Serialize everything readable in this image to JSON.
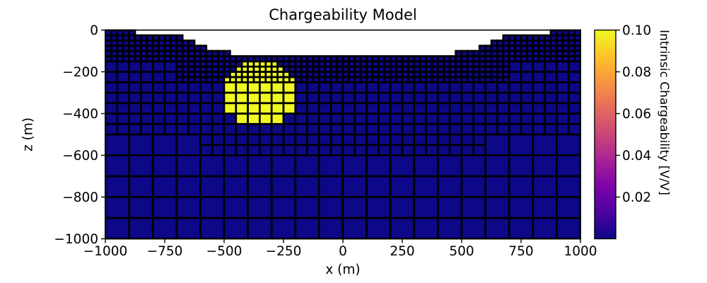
{
  "chart_data": {
    "type": "heatmap",
    "subtype": "quadtree-tree-mesh-cross-section",
    "title": "Chargeability Model",
    "xlabel": "x (m)",
    "ylabel": "z (m)",
    "xlim": [
      -1000,
      1000
    ],
    "zlim": [
      -1000,
      0
    ],
    "xticks": {
      "values": [
        -1000,
        -750,
        -500,
        -250,
        0,
        250,
        500,
        750,
        1000
      ],
      "labels": [
        "−1000",
        "−750",
        "−500",
        "−250",
        "0",
        "250",
        "500",
        "750",
        "1000"
      ]
    },
    "zticks": {
      "values": [
        0,
        -200,
        -400,
        -600,
        -800,
        -1000
      ],
      "labels": [
        "0",
        "−200",
        "−400",
        "−600",
        "−800",
        "−1000"
      ]
    },
    "colorbar": {
      "label": "Intrinsic Chargeability [V/V]",
      "colormap": "plasma",
      "vmin": 0.0,
      "vmax": 0.1,
      "ticks": {
        "values": [
          0.02,
          0.04,
          0.06,
          0.08,
          0.1
        ],
        "labels": [
          "0.02",
          "0.04",
          "0.06",
          "0.08",
          "0.10"
        ]
      },
      "gradient_stops": [
        {
          "offset": 0.0,
          "color": "#0d0887"
        },
        {
          "offset": 0.125,
          "color": "#4b03a1"
        },
        {
          "offset": 0.25,
          "color": "#7d03a8"
        },
        {
          "offset": 0.375,
          "color": "#a82296"
        },
        {
          "offset": 0.5,
          "color": "#cb4679"
        },
        {
          "offset": 0.625,
          "color": "#e56b5d"
        },
        {
          "offset": 0.75,
          "color": "#f89441"
        },
        {
          "offset": 0.875,
          "color": "#fdc328"
        },
        {
          "offset": 1.0,
          "color": "#f0f921"
        }
      ]
    },
    "values": {
      "background_chargeability": 0.0,
      "anomaly_chargeability": 0.1
    },
    "anomaly": {
      "shape": "circle",
      "center_x": -350,
      "center_z": -300,
      "radius": 155
    },
    "mesh": {
      "cell_sizes_m": [
        25,
        50,
        100
      ],
      "topography_steps": [
        [
          -1000,
          -875,
          0
        ],
        [
          -875,
          -675,
          -25
        ],
        [
          -675,
          -625,
          -50
        ],
        [
          -625,
          -575,
          -75
        ],
        [
          -575,
          -475,
          -100
        ],
        [
          -475,
          475,
          -125
        ],
        [
          475,
          575,
          -100
        ],
        [
          575,
          625,
          -75
        ],
        [
          625,
          675,
          -50
        ],
        [
          675,
          875,
          -25
        ],
        [
          875,
          1000,
          0
        ]
      ],
      "fine_floor_shallow_z": -150,
      "fine_floor_deep_z": -255,
      "fine_deep_topo_threshold_z": -50,
      "core_half_width_m": 600,
      "medium_floor_core_z": -600,
      "medium_floor_flank_z": -500
    },
    "colors": {
      "background_cell": "#0d0887",
      "anomaly_cell": "#f0f921",
      "cell_edge": "#000000",
      "spine": "#000000",
      "text": "#000000",
      "figure_background": "#ffffff"
    },
    "grid": false,
    "legend": false
  }
}
